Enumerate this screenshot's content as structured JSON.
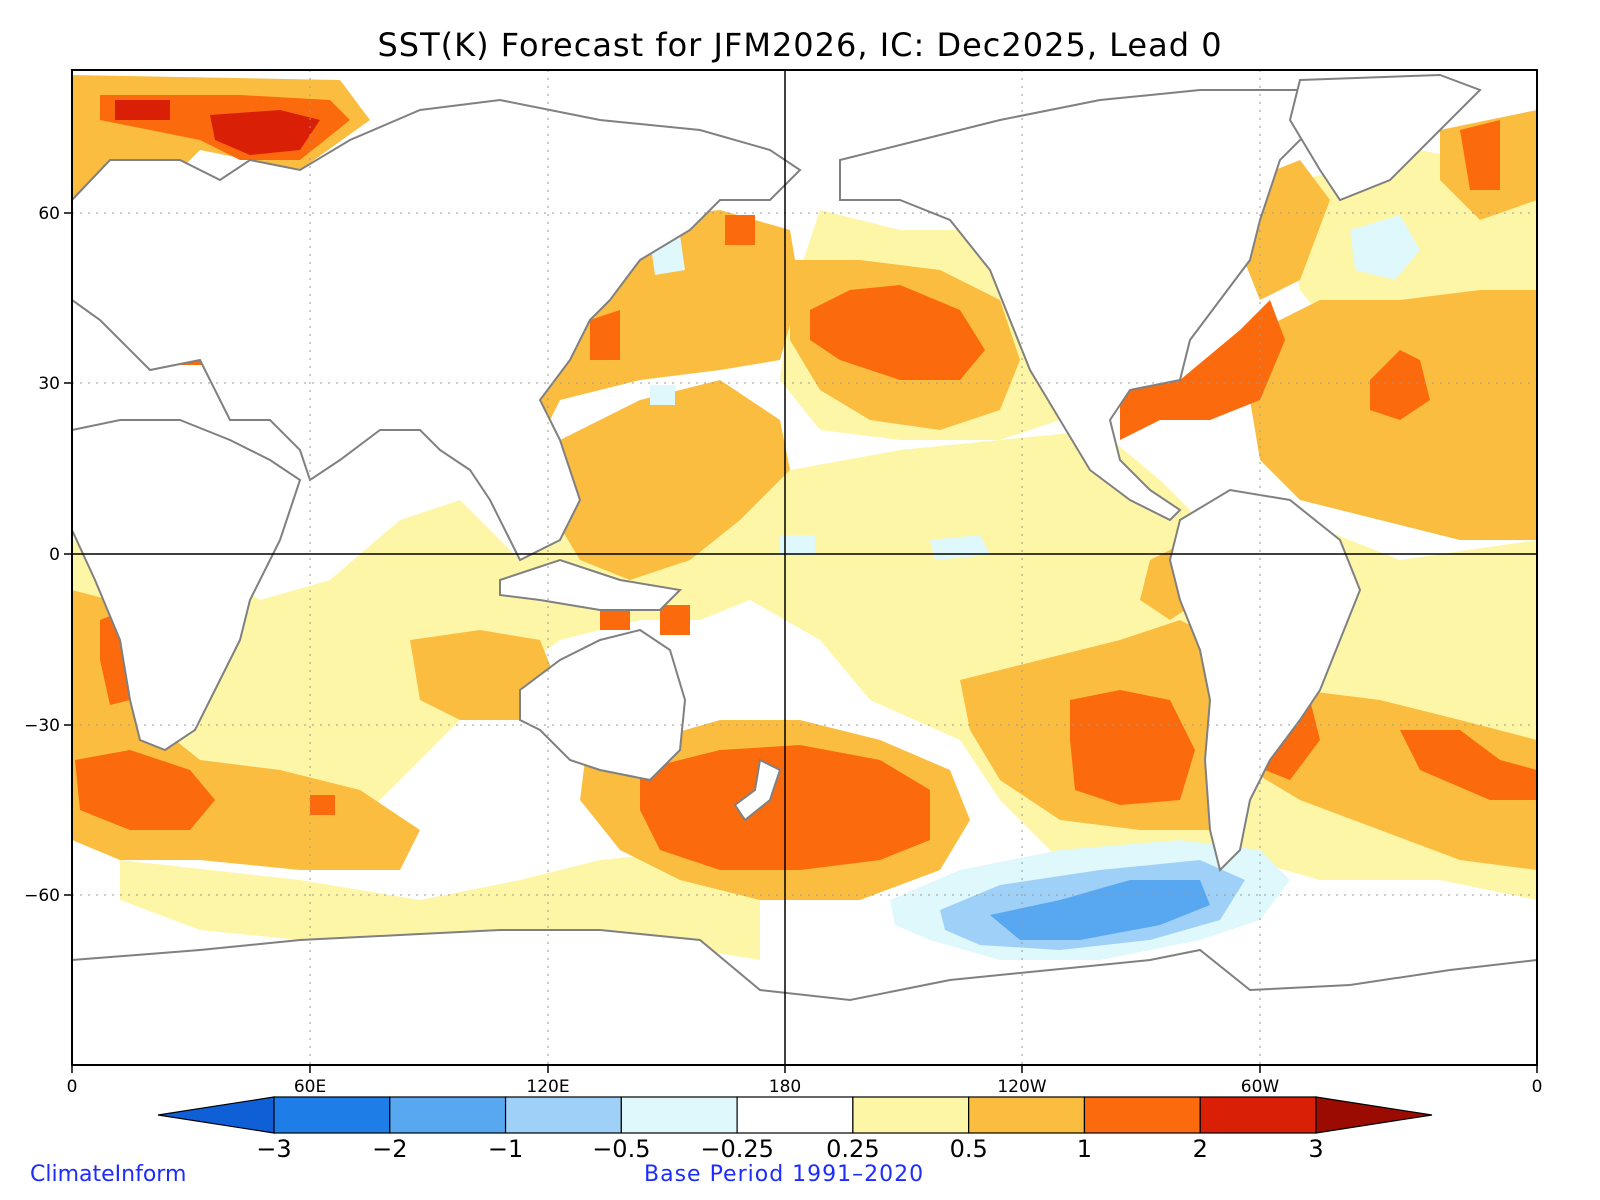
{
  "title": "SST(K) Forecast for JFM2026, IC: Dec2025, Lead 0",
  "footer": {
    "credit": "ClimateInform",
    "base_period": "Base Period 1991–2020"
  },
  "lat_ticks": [
    "60",
    "30",
    "0",
    "−30",
    "−60"
  ],
  "lon_ticks": [
    "0",
    "60E",
    "120E",
    "180",
    "120W",
    "60W",
    "0"
  ],
  "colorbar": {
    "labels": [
      "−3",
      "−2",
      "−1",
      "−0.5",
      "−0.25",
      "0.25",
      "0.5",
      "1",
      "2",
      "3"
    ],
    "colors": [
      "#0f5fd6",
      "#1f7de8",
      "#57a8f0",
      "#9fd0f7",
      "#dff8fb",
      "#ffffff",
      "#fef6a7",
      "#fbbd3f",
      "#fb6a0c",
      "#d91f05",
      "#9c0b02"
    ]
  }
}
